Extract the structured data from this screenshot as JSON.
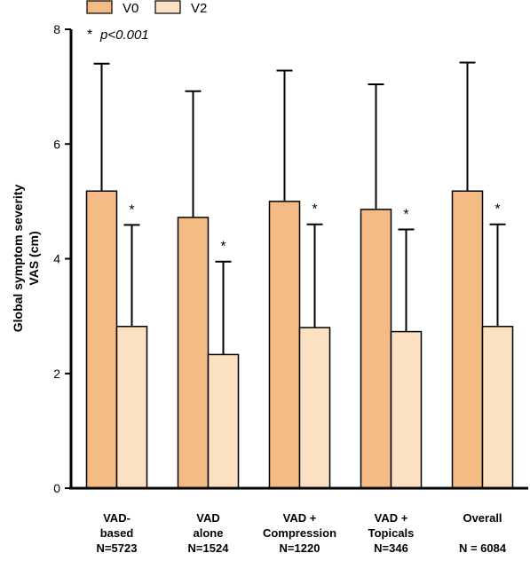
{
  "chart_data": {
    "type": "bar",
    "ylabel_lines": [
      "Global symptom severity",
      "VAS (cm)"
    ],
    "ylim": [
      0,
      8
    ],
    "yticks": [
      "0",
      "2",
      "4",
      "6",
      "8"
    ],
    "categories": [
      {
        "lines": [
          "VAD-",
          "based",
          "N=5723"
        ]
      },
      {
        "lines": [
          "VAD",
          "alone",
          "N=1524"
        ]
      },
      {
        "lines": [
          "VAD +",
          "Compression",
          "N=1220"
        ]
      },
      {
        "lines": [
          "VAD +",
          "Topicals",
          "N=346"
        ]
      },
      {
        "lines": [
          "Overall",
          "",
          "N = 6084"
        ]
      }
    ],
    "series": [
      {
        "name": "V0",
        "color": "#F4BB85",
        "values": [
          5.18,
          4.72,
          5.0,
          4.86,
          5.18
        ],
        "error_upper": [
          7.4,
          6.92,
          7.28,
          7.04,
          7.42
        ],
        "sig": [
          "",
          "",
          "",
          "",
          ""
        ]
      },
      {
        "name": "V2",
        "color": "#FCE0C2",
        "values": [
          2.82,
          2.33,
          2.8,
          2.73,
          2.82
        ],
        "error_upper": [
          4.59,
          3.95,
          4.6,
          4.51,
          4.6
        ],
        "sig": [
          "*",
          "*",
          "*",
          "*",
          "*"
        ]
      }
    ],
    "annotation": {
      "star": "*",
      "text": "p<0.001"
    },
    "legend_position": "top",
    "grid": false
  }
}
